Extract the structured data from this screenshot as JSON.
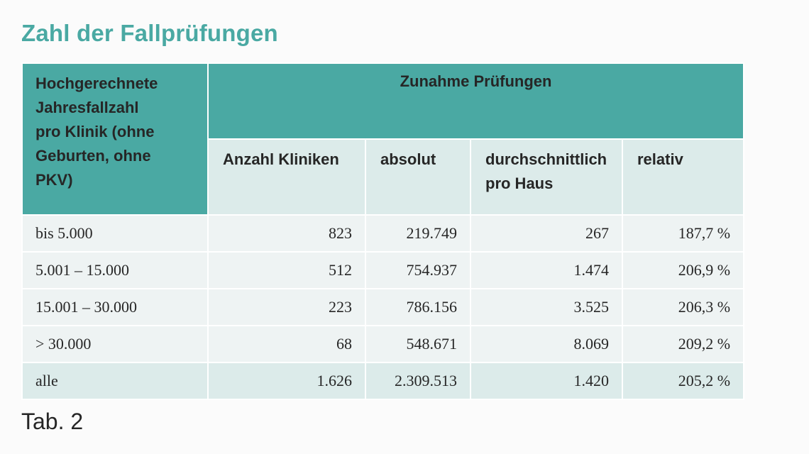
{
  "title": "Zahl der Fallprüfungen",
  "table": {
    "corner_header_lines": [
      "Hochgerechnete",
      "Jahresfallzahl",
      "pro Klinik (ohne",
      "Geburten, ohne",
      "PKV)"
    ],
    "group_header": "Zunahme Prüfungen",
    "columns": [
      {
        "lines": [
          "Anzahl Kliniken"
        ]
      },
      {
        "lines": [
          "absolut"
        ]
      },
      {
        "lines": [
          "durchschnittlich",
          "pro Haus"
        ]
      },
      {
        "lines": [
          "relativ"
        ]
      }
    ],
    "rows": [
      {
        "label": "bis 5.000",
        "cells": [
          "823",
          "219.749",
          "267",
          "187,7 %"
        ]
      },
      {
        "label": "5.001 – 15.000",
        "cells": [
          "512",
          "754.937",
          "1.474",
          "206,9 %"
        ]
      },
      {
        "label": "15.001 – 30.000",
        "cells": [
          "223",
          "786.156",
          "3.525",
          "206,3 %"
        ]
      },
      {
        "label": "> 30.000",
        "cells": [
          "68",
          "548.671",
          "8.069",
          "209,2 %"
        ]
      },
      {
        "label": "alle",
        "cells": [
          "1.626",
          "2.309.513",
          "1.420",
          "205,2 %"
        ]
      }
    ]
  },
  "caption": "Tab. 2",
  "colors": {
    "accent": "#4aa9a3",
    "header_light": "#dcebea",
    "row_light": "#eef3f3"
  }
}
